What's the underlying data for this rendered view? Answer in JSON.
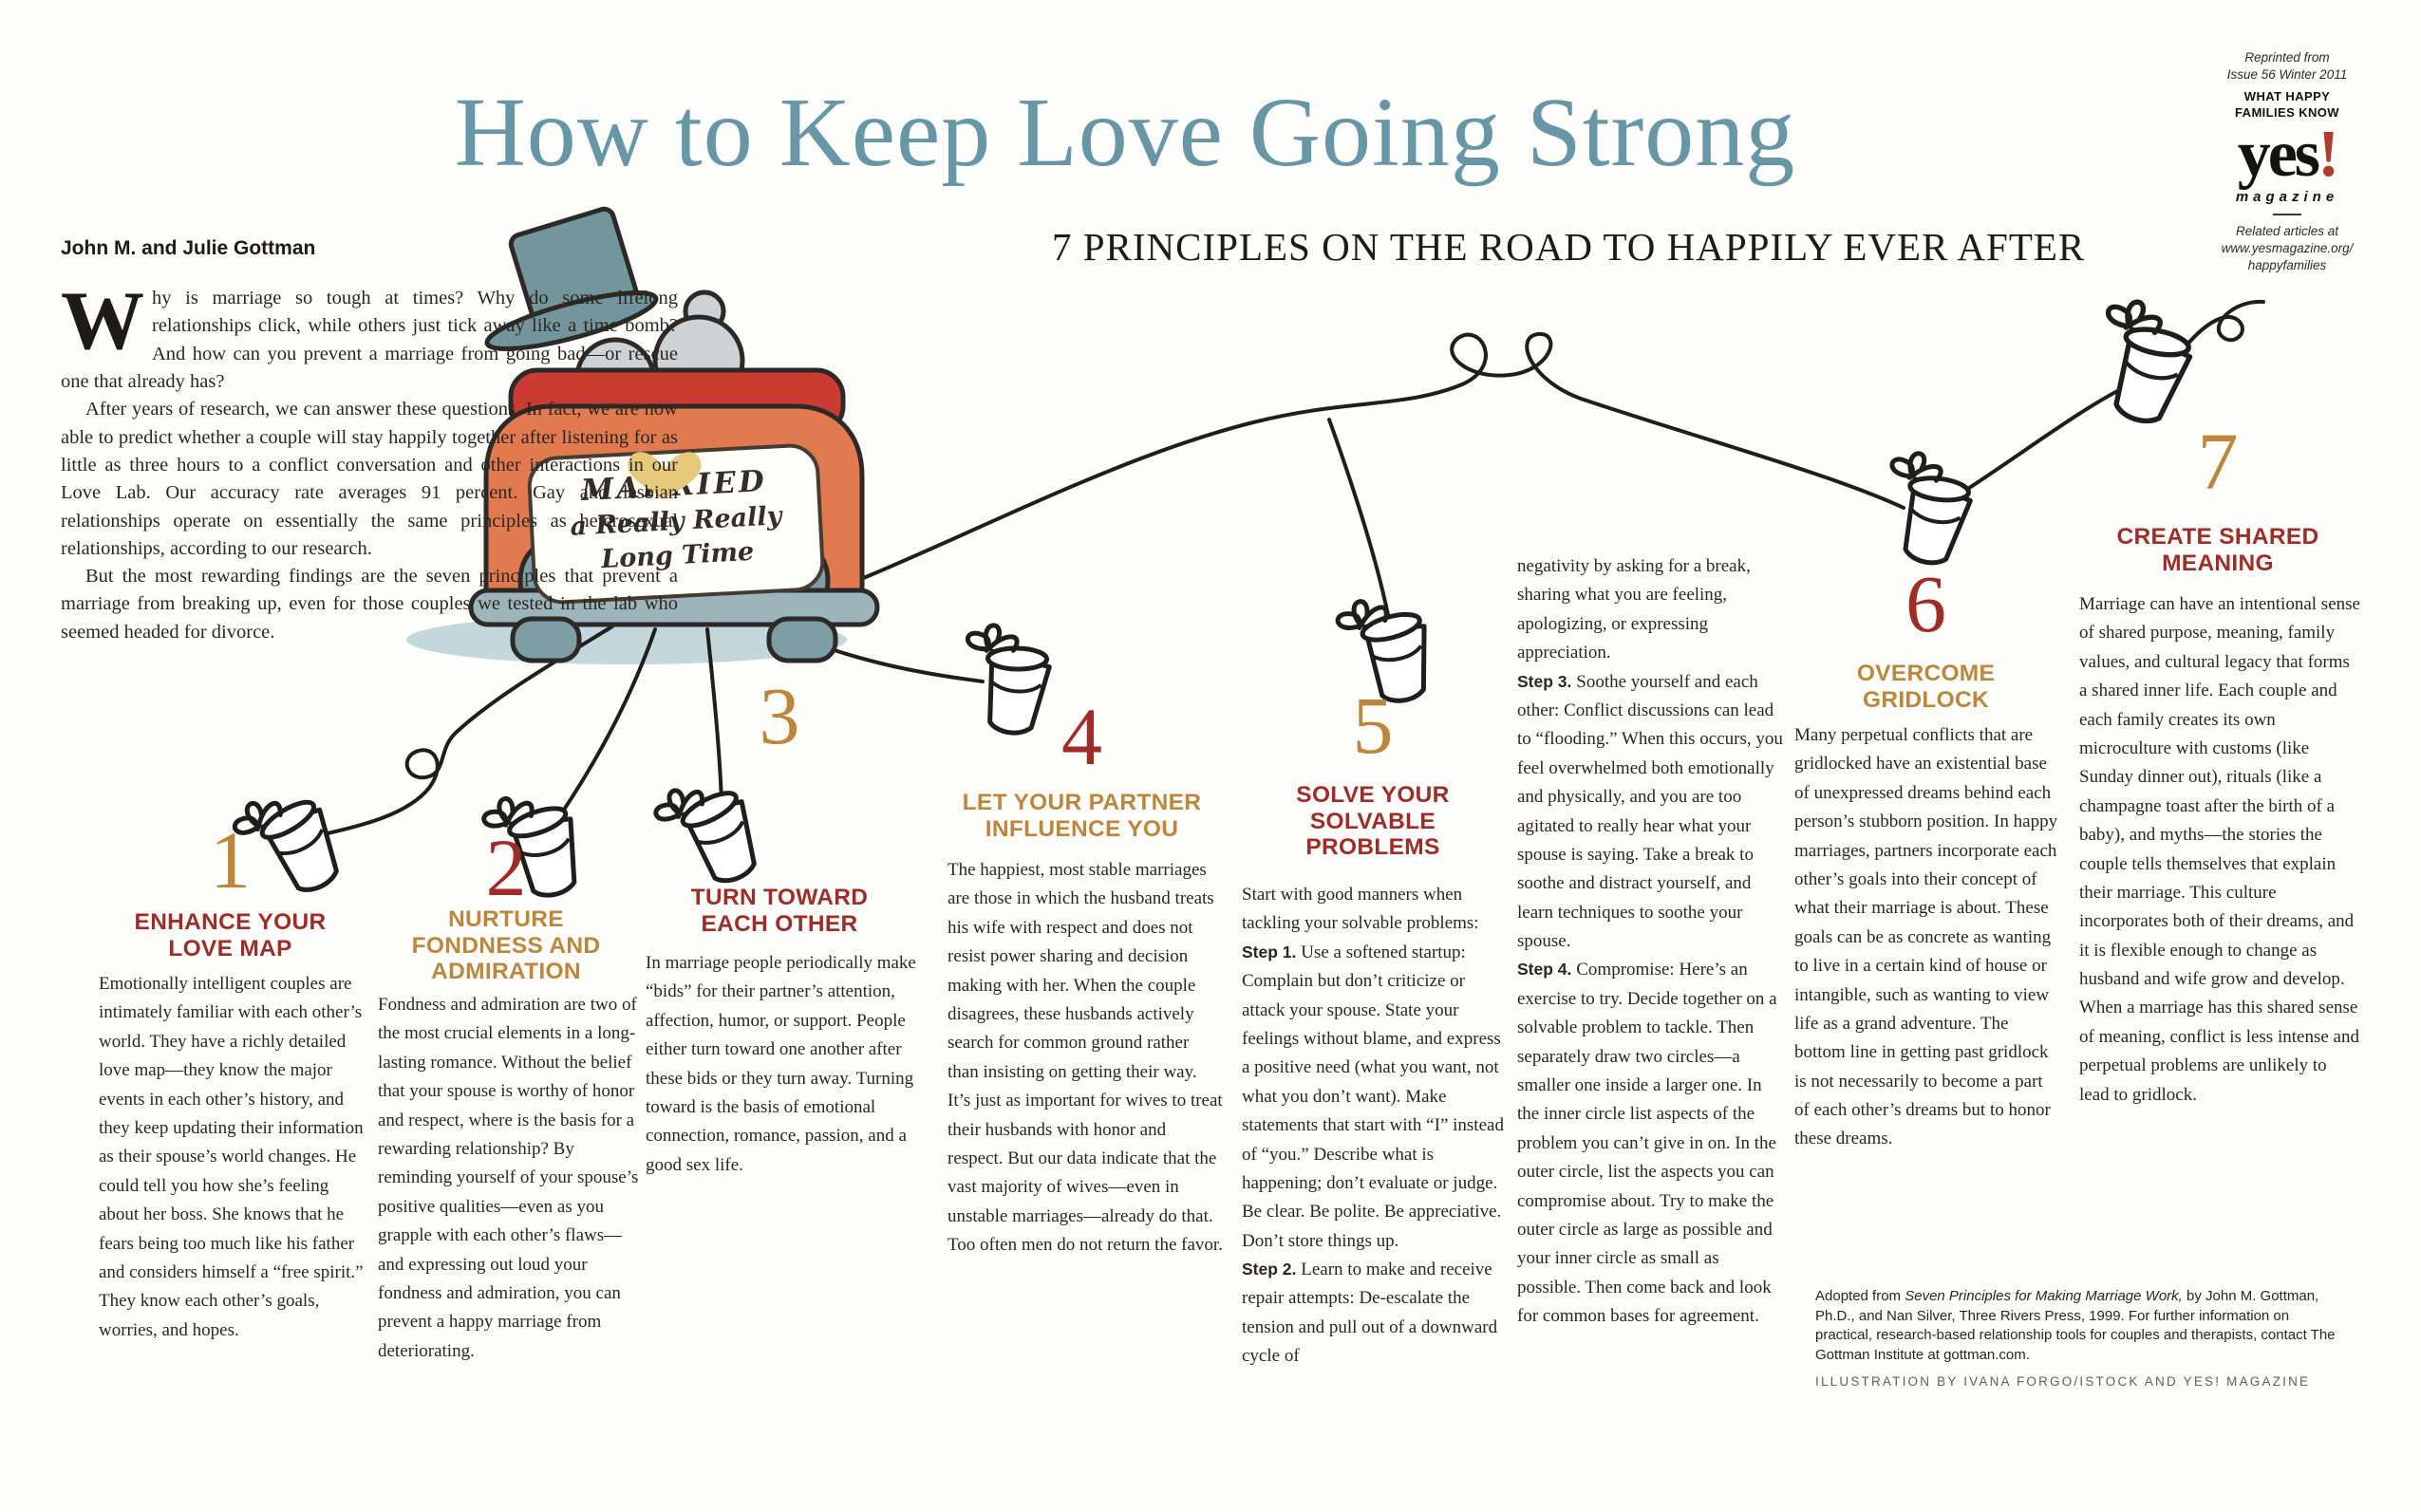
{
  "palette": {
    "title_teal": "#6797a6",
    "accent_red": "#9f2c27",
    "accent_gold": "#bd863b",
    "text": "#2a2622",
    "logo_red": "#b23b2b",
    "car_orange": "#e27a50",
    "seat_red": "#ca3c31",
    "hat_teal": "#75959c",
    "wheel_teal": "#7f9da4",
    "bumper_teal": "#9db4ba",
    "hair_gray": "#cdd2d4",
    "heart_gold": "#e6c97a",
    "shadow_blue": "#c3d7dd",
    "string_black": "#1e1e1c"
  },
  "header": {
    "title": "How to Keep Love Going Strong",
    "byline": "John M. and Julie Gottman",
    "subtitle": "7 PRINCIPLES ON THE ROAD TO HAPPILY EVER AFTER"
  },
  "masthead": {
    "reprint": "Reprinted from\nIssue 56 Winter 2011",
    "kicker": "WHAT HAPPY\nFAMILIES KNOW",
    "logo_text": "yes",
    "logo_exclaim": "!",
    "logo_sub": "magazine",
    "related": "Related articles at\nwww.yesmagazine.org/\nhappyfamilies"
  },
  "intro": {
    "dropcap": "W",
    "p1": "hy is marriage so tough at times? Why do some lifelong relationships click, while others just tick away like a time bomb? And how can you prevent a marriage from going bad—or rescue one that already has?",
    "p2": "After years of research, we can answer these questions. In fact, we are now able to predict whether a couple will stay happily together after listening for as little as three hours to a conflict conversation and other interactions in our Love Lab. Our accuracy rate averages 91 percent. Gay and lesbian relationships operate on essentially the same principles as heterosexual relationships, according to our research.",
    "p3": "But the most rewarding findings are the seven principles that prevent a marriage from breaking up, even for those couples we tested in the lab who seemed headed for divorce."
  },
  "car_sign": {
    "line1": "MARRIED",
    "line2": "a Really Really",
    "line3": "Long Time"
  },
  "sections": [
    {
      "number": "1",
      "heading": "ENHANCE YOUR\nLOVE MAP",
      "paragraphs": [
        {
          "text": "Emotionally intelligent couples are intimately familiar with each other’s world. They have a richly detailed love map—they know the major events in each other’s history, and they keep updating their information as their spouse’s world changes. He could tell you how she’s feeling about her boss. She knows that he fears being too much like his father and considers himself a “free spirit.” They know each other’s goals, worries, and hopes."
        }
      ]
    },
    {
      "number": "2",
      "heading": "NURTURE\nFONDNESS AND\nADMIRATION",
      "paragraphs": [
        {
          "text": "Fondness and admiration are two of the most crucial elements in a long-lasting romance. Without the belief that your spouse is worthy of honor and respect, where is the basis for a rewarding relationship? By reminding yourself of your spouse’s positive qualities—even as you grapple with each other’s flaws—and expressing out loud your fondness and admiration, you can prevent a happy marriage from deteriorating."
        }
      ]
    },
    {
      "number": "3",
      "heading": "TURN TOWARD\nEACH OTHER",
      "paragraphs": [
        {
          "text": "In marriage people periodically make “bids” for their partner’s attention, affection, humor, or support. People either turn toward one another after these bids or they turn away. Turning toward is the basis of emotional connection, romance, passion, and a good sex life."
        }
      ]
    },
    {
      "number": "4",
      "heading": "LET YOUR PARTNER\nINFLUENCE YOU",
      "paragraphs": [
        {
          "text": "The happiest, most stable marriages are those in which the husband treats his wife with respect and does not resist power sharing and decision making with her. When the couple disagrees, these husbands actively search for common ground rather than insisting on getting their way. It’s just as important for wives to treat their husbands with honor and respect. But our data indicate that the vast majority of wives—even in unstable marriages—already do that. Too often men do not return the favor."
        }
      ]
    },
    {
      "number": "5",
      "heading": "SOLVE YOUR\nSOLVABLE\nPROBLEMS",
      "paragraphs": [
        {
          "text": "Start with good manners when tackling your solvable problems:"
        },
        {
          "label": "Step 1.",
          "text": "Use a softened startup: Complain but don’t criticize or attack your spouse. State your feelings without blame, and express a positive need (what you want, not what you don’t want). Make statements that start with “I” instead of “you.” Describe what is happening; don’t evaluate or judge. Be clear. Be polite. Be appreciative. Don’t store things up."
        },
        {
          "label": "Step 2.",
          "text": "Learn to make and receive repair attempts: De-escalate the tension and pull out of a downward cycle of"
        }
      ],
      "continued_paragraphs": [
        {
          "text": "negativity by asking for a break, sharing what you are feeling, apologizing, or expressing appreciation."
        },
        {
          "label": "Step 3.",
          "text": "Soothe yourself and each other: Conflict discussions can lead to “flooding.” When this occurs, you feel overwhelmed both emotionally and physically, and you are too agitated to really hear what your spouse is saying. Take a break to soothe and distract yourself, and learn techniques to soothe your spouse."
        },
        {
          "label": "Step 4.",
          "text": "Compromise: Here’s an exercise to try. Decide together on a solvable problem to tackle. Then separately draw two circles—a smaller one inside a larger one. In the inner circle list aspects of the problem you can’t give in on. In the outer circle, list the aspects you can compromise about. Try to make the outer circle as large as possible and your inner circle as small as possible. Then come back and look for common bases for agreement."
        }
      ]
    },
    {
      "number": "6",
      "heading": "OVERCOME\nGRIDLOCK",
      "paragraphs": [
        {
          "text": "Many perpetual conflicts that are gridlocked have an existential base of unexpressed dreams behind each person’s stubborn position. In happy marriages, partners incorporate each other’s goals into their concept of what their marriage is about. These goals can be as concrete as wanting to live in a certain kind of house or intangible, such as wanting to view life as a grand adventure. The bottom line in getting past gridlock is not necessarily to become a part of each other’s dreams but to honor these dreams."
        }
      ]
    },
    {
      "number": "7",
      "heading": "CREATE SHARED\nMEANING",
      "paragraphs": [
        {
          "text": "Marriage can have an intentional sense of shared purpose, meaning, family values, and cultural legacy that forms a shared inner life. Each couple and each family creates its own microculture with customs (like Sunday dinner out), rituals (like a champagne toast after the birth of a baby), and myths—the stories the couple tells themselves that explain their marriage. This culture incorporates both of their dreams, and it is flexible enough to change as husband and wife grow and develop. When a marriage has this shared sense of meaning, conflict is less intense and perpetual problems are unlikely to lead to gridlock."
        }
      ]
    }
  ],
  "footer": {
    "credit_segments": [
      {
        "text": "Adopted from "
      },
      {
        "text": "Seven Principles for Making Marriage Work,",
        "italic": true
      },
      {
        "text": " by John M. Gottman, Ph.D., and Nan Silver, Three Rivers Press, 1999. For further information on practical, research-based relationship tools for couples and therapists, contact The Gottman Institute at gottman.com."
      }
    ],
    "illustration_credit": "ILLUSTRATION BY IVANA FORGO/ISTOCK AND YES! MAGAZINE"
  }
}
